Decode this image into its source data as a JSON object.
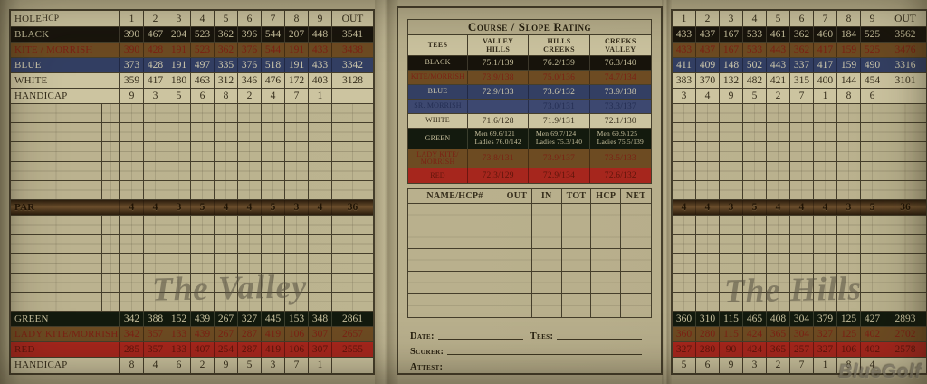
{
  "meta": {
    "brand_watermark": "BlueGolf"
  },
  "colors": {
    "paper": "#b7ae8b",
    "line": "#453e2b",
    "cream": "#ccc4a0",
    "ink": "#2e2715",
    "black": "#18140c",
    "lighttext": "#c8c19e",
    "brown": "#6d4b22",
    "maroon": "#7c2114",
    "blue": "#333f63",
    "bluetext": "#cfc9ae",
    "navy": "#3d4870",
    "navytext": "#242e53",
    "green": "#131a0e",
    "red": "#a6261d",
    "darkred": "#5f150b",
    "banddark": "#2b1d0d",
    "bandlight": "#6b4e2c",
    "bandtext": "#201405",
    "wm": "#565040",
    "brand": "#8e8876"
  },
  "left_panel": {
    "watermark": "The Valley",
    "header": {
      "hole_label": "HOLE",
      "hcp_label": "HCP",
      "holes": [
        "1",
        "2",
        "3",
        "4",
        "5",
        "6",
        "7",
        "8",
        "9"
      ],
      "out_label": "OUT"
    },
    "empty_rows_per_section": 5,
    "front_rows": [
      {
        "name": "BLACK",
        "style": "black",
        "values": [
          "390",
          "467",
          "204",
          "523",
          "362",
          "396",
          "544",
          "207",
          "448"
        ],
        "total": "3541"
      },
      {
        "name": "KITE / MORRISH",
        "style": "brown",
        "values": [
          "390",
          "428",
          "191",
          "523",
          "362",
          "376",
          "544",
          "191",
          "433"
        ],
        "total": "3438"
      },
      {
        "name": "BLUE",
        "style": "blue",
        "values": [
          "373",
          "428",
          "191",
          "497",
          "335",
          "376",
          "518",
          "191",
          "433"
        ],
        "total": "3342"
      },
      {
        "name": "WHITE",
        "style": "white",
        "values": [
          "359",
          "417",
          "180",
          "463",
          "312",
          "346",
          "476",
          "172",
          "403"
        ],
        "total": "3128"
      },
      {
        "name": "HANDICAP",
        "style": "plain",
        "values": [
          "9",
          "3",
          "5",
          "6",
          "8",
          "2",
          "4",
          "7",
          "1"
        ],
        "total": ""
      }
    ],
    "par_row": {
      "name": "PAR",
      "style": "par",
      "values": [
        "4",
        "4",
        "3",
        "5",
        "4",
        "4",
        "5",
        "3",
        "4"
      ],
      "total": "36"
    },
    "bottom_rows": [
      {
        "name": "GREEN",
        "style": "green",
        "values": [
          "342",
          "388",
          "152",
          "439",
          "267",
          "327",
          "445",
          "153",
          "348"
        ],
        "total": "2861"
      },
      {
        "name": "LADY KITE/MORRISH",
        "style": "brown",
        "values": [
          "342",
          "357",
          "133",
          "439",
          "267",
          "287",
          "419",
          "106",
          "307"
        ],
        "total": "2657"
      },
      {
        "name": "RED",
        "style": "red",
        "values": [
          "285",
          "357",
          "133",
          "407",
          "254",
          "287",
          "419",
          "106",
          "307"
        ],
        "total": "2555"
      },
      {
        "name": "HANDICAP",
        "style": "plain",
        "values": [
          "8",
          "4",
          "6",
          "2",
          "9",
          "5",
          "3",
          "7",
          "1"
        ],
        "total": ""
      }
    ]
  },
  "right_panel": {
    "watermark": "The Hills",
    "header": {
      "holes": [
        "1",
        "2",
        "3",
        "4",
        "5",
        "6",
        "7",
        "8",
        "9"
      ],
      "out_label": "OUT"
    },
    "empty_rows_per_section": 5,
    "front_rows": [
      {
        "style": "black",
        "values": [
          "433",
          "437",
          "167",
          "533",
          "461",
          "362",
          "460",
          "184",
          "525"
        ],
        "total": "3562"
      },
      {
        "style": "brown",
        "values": [
          "433",
          "437",
          "167",
          "533",
          "443",
          "362",
          "417",
          "159",
          "525"
        ],
        "total": "3476"
      },
      {
        "style": "blue",
        "values": [
          "411",
          "409",
          "148",
          "502",
          "443",
          "337",
          "417",
          "159",
          "490"
        ],
        "total": "3316"
      },
      {
        "style": "white",
        "values": [
          "383",
          "370",
          "132",
          "482",
          "421",
          "315",
          "400",
          "144",
          "454"
        ],
        "total": "3101"
      },
      {
        "style": "plain",
        "values": [
          "3",
          "4",
          "9",
          "5",
          "2",
          "7",
          "1",
          "8",
          "6"
        ],
        "total": ""
      }
    ],
    "par_row": {
      "style": "par",
      "values": [
        "4",
        "4",
        "3",
        "5",
        "4",
        "4",
        "4",
        "3",
        "5"
      ],
      "total": "36"
    },
    "bottom_rows": [
      {
        "style": "green",
        "values": [
          "360",
          "310",
          "115",
          "465",
          "408",
          "304",
          "379",
          "125",
          "427"
        ],
        "total": "2893"
      },
      {
        "style": "brown",
        "values": [
          "360",
          "280",
          "115",
          "424",
          "365",
          "304",
          "327",
          "125",
          "402"
        ],
        "total": "2702"
      },
      {
        "style": "red",
        "values": [
          "327",
          "280",
          "90",
          "424",
          "365",
          "257",
          "327",
          "106",
          "402"
        ],
        "total": "2578"
      },
      {
        "style": "plain",
        "values": [
          "5",
          "6",
          "9",
          "3",
          "2",
          "7",
          "1",
          "8",
          "4"
        ],
        "total": ""
      }
    ]
  },
  "middle_panel": {
    "rating": {
      "title": "Course / Slope Rating",
      "columns": [
        "TEES",
        "VALLEY HILLS",
        "HILLS CREEKS",
        "CREEKS VALLEY"
      ],
      "rows": [
        {
          "tee": "BLACK",
          "style": "black",
          "values": [
            "75.1/139",
            "76.2/139",
            "76.3/140"
          ]
        },
        {
          "tee": "KITE/MORRISH",
          "style": "brown",
          "values": [
            "73.9/138",
            "75.0/136",
            "74.7/134"
          ]
        },
        {
          "tee": "BLUE",
          "style": "blue",
          "values": [
            "72.9/133",
            "73.6/132",
            "73.9/138"
          ]
        },
        {
          "tee": "SR. MORRISH",
          "style": "navy",
          "values": [
            "",
            "73.0/131",
            "73.3/137"
          ]
        },
        {
          "tee": "WHITE",
          "style": "white",
          "values": [
            "71.6/128",
            "71.9/131",
            "72.1/130"
          ]
        },
        {
          "tee": "GREEN",
          "style": "green",
          "values": [
            [
              "Men 69.6/121",
              "Ladies 76.0/142"
            ],
            [
              "Men 69.7/124",
              "Ladies 75.3/140"
            ],
            [
              "Men 69.9/125",
              "Ladies 75.5/139"
            ]
          ]
        },
        {
          "tee": "LADY KITE/ MORRISH",
          "style": "brown",
          "values": [
            "73.8/131",
            "73.9/137",
            "73.5/133"
          ]
        },
        {
          "tee": "RED",
          "style": "red",
          "values": [
            "72.3/129",
            "72.9/134",
            "72.6/132"
          ]
        }
      ]
    },
    "score_entry": {
      "columns": [
        "NAME/HCP#",
        "OUT",
        "IN",
        "TOT",
        "HCP",
        "NET"
      ],
      "empty_rows": 5
    },
    "signature": {
      "date_label": "Date:",
      "tees_label": "Tees:",
      "scorer_label": "Scorer:",
      "attest_label": "Attest:"
    }
  }
}
